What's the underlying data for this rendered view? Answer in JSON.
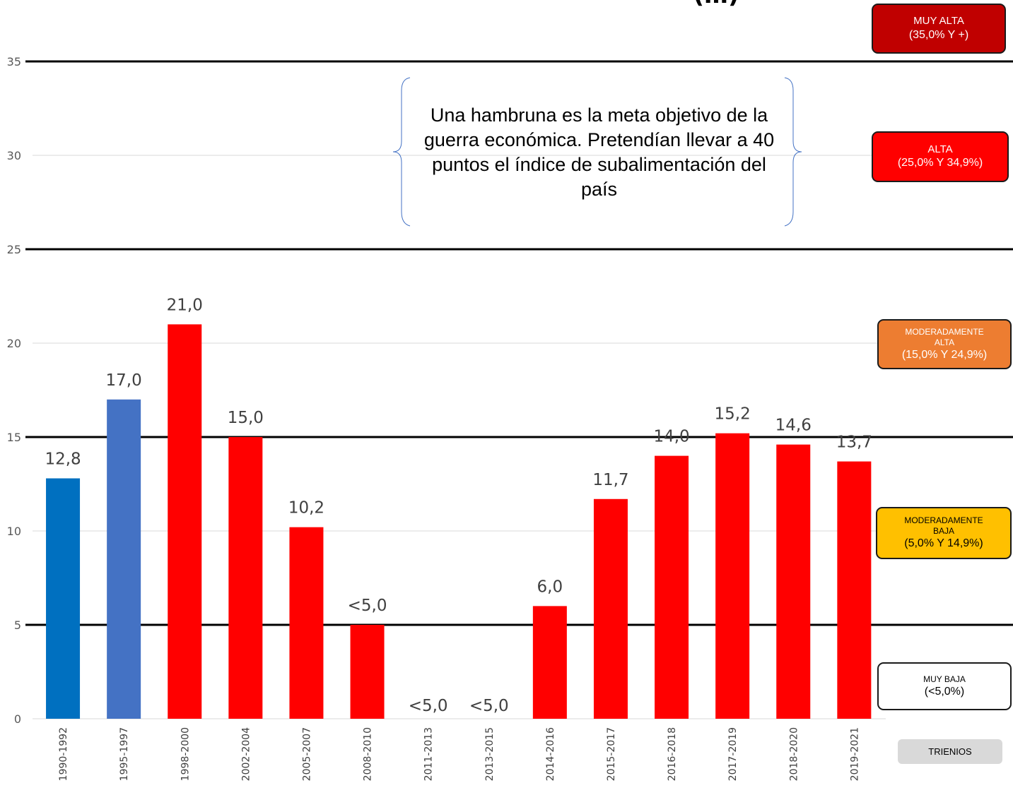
{
  "chart_data": {
    "type": "bar",
    "title_fragment": "(…)",
    "categories": [
      "1990-1992",
      "1995-1997",
      "1998-2000",
      "2002-2004",
      "2005-2007",
      "2008-2010",
      "2011-2013",
      "2013-2015",
      "2014-2016",
      "2015-2017",
      "2016-2018",
      "2017-2019",
      "2018-2020",
      "2019-2021"
    ],
    "values": [
      12.8,
      17.0,
      21.0,
      15.0,
      10.2,
      5.0,
      0,
      0,
      6.0,
      11.7,
      14.0,
      15.2,
      14.6,
      13.7
    ],
    "data_labels": [
      "12,8",
      "17,0",
      "21,0",
      "15,0",
      "10,2",
      "<5,0",
      "<5,0",
      "<5,0",
      "6,0",
      "11,7",
      "14,0",
      "15,2",
      "14,6",
      "13,7"
    ],
    "bar_colors": [
      "#0070c0",
      "#4472c4",
      "#ff0000",
      "#ff0000",
      "#ff0000",
      "#ff0000",
      "#ff0000",
      "#ff0000",
      "#ff0000",
      "#ff0000",
      "#ff0000",
      "#ff0000",
      "#ff0000",
      "#ff0000"
    ],
    "ylim": [
      0,
      35
    ],
    "yticks": [
      0,
      5,
      10,
      15,
      20,
      25,
      30,
      35
    ],
    "threshold_lines": [
      5,
      15,
      25,
      35
    ],
    "gridlines": true,
    "x_axis_label": "TRIENIOS"
  },
  "annotation": "Una hambruna es la meta objetivo de la guerra económica.  Pretendían llevar a 40 puntos el índice de subalimentación del país",
  "categories_legend": [
    {
      "line1": "MUY ALTA",
      "line2": "(35,0% Y +)",
      "color": "#c00000",
      "text_color": "#ffffff"
    },
    {
      "line1": "ALTA",
      "line2": "(25,0% Y 34,9%)",
      "color": "#ff0000",
      "text_color": "#ffffff"
    },
    {
      "line1": "MODERADAMENTE ALTA",
      "line2": "(15,0% Y 24,9%)",
      "color": "#ed7d31",
      "text_color": "#ffffff"
    },
    {
      "line1": "MODERADAMENTE BAJA",
      "line2": "(5,0% Y 14,9%)",
      "color": "#ffc000",
      "text_color": "#000000"
    },
    {
      "line1": "MUY BAJA",
      "line2": "(<5,0%)",
      "color": "#ffffff",
      "text_color": "#000000"
    }
  ]
}
